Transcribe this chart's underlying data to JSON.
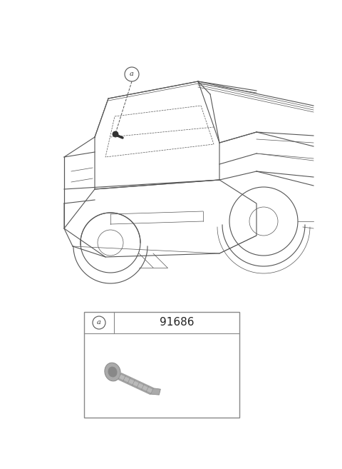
{
  "background_color": "#ffffff",
  "part_number": "91686",
  "figure_width": 4.8,
  "figure_height": 6.57,
  "dpi": 100,
  "car_color": "#555555",
  "line_color": "#666666",
  "box_line_color": "#888888",
  "callout_circle_color": "#ffffff",
  "callout_circle_border": "#555555",
  "grommet_color": "#aaaaaa",
  "grommet_dark": "#888888",
  "grommet_light": "#cccccc"
}
